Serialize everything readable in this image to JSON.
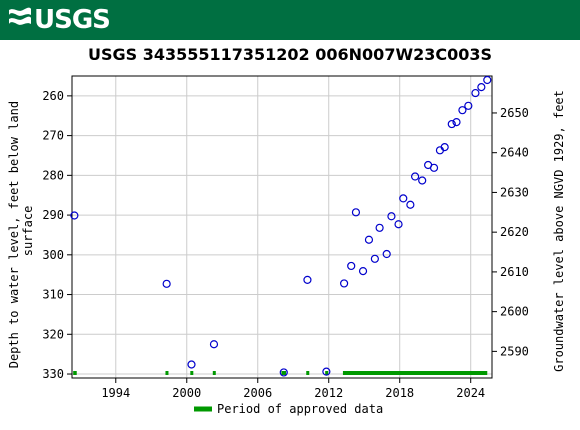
{
  "header": {
    "logo_text": "USGS",
    "background_color": "#006f41"
  },
  "chart_data": {
    "type": "scatter",
    "title": "USGS 343555117351202 006N007W23C003S",
    "xlabel": "",
    "ylabel_left": "Depth to water level, feet below land surface",
    "ylabel_left_lines": [
      "Depth to water level, feet below land",
      "surface"
    ],
    "ylabel_right": "Groundwater level above NGVD 1929, feet",
    "xlim": [
      1990.3,
      2025.8
    ],
    "ylim_left": [
      255,
      331
    ],
    "ylim_right": [
      2659.3,
      2583.3
    ],
    "x_ticks": [
      1994,
      2000,
      2006,
      2012,
      2018,
      2024
    ],
    "y_ticks_left": [
      260,
      270,
      280,
      290,
      300,
      310,
      320,
      330
    ],
    "y_ticks_right": [
      2650,
      2640,
      2630,
      2620,
      2610,
      2600,
      2590
    ],
    "grid": true,
    "marker_color": "#0000cc",
    "approved_color": "#009900",
    "series": [
      {
        "x": [
          1990.5,
          1998.3,
          2000.4,
          2002.3,
          2008.2,
          2010.2,
          2011.8,
          2013.3,
          2013.9,
          2014.3,
          2014.9,
          2015.4,
          2015.9,
          2016.3,
          2016.9,
          2017.3,
          2017.9,
          2018.3,
          2018.9,
          2019.3,
          2019.9,
          2020.4,
          2020.9,
          2021.4,
          2021.8,
          2022.4,
          2022.8,
          2023.3,
          2023.8,
          2024.4,
          2024.9,
          2025.4
        ],
        "y": [
          290.1,
          307.3,
          327.6,
          322.5,
          329.6,
          306.3,
          329.4,
          307.2,
          302.8,
          289.3,
          304.1,
          296.2,
          301.0,
          293.2,
          299.8,
          290.3,
          292.3,
          285.8,
          287.4,
          280.3,
          281.3,
          277.4,
          278.1,
          273.7,
          272.9,
          267.1,
          266.6,
          263.6,
          262.5,
          259.3,
          257.8,
          256.0
        ]
      }
    ],
    "approved_periods": [
      [
        1990.4,
        1990.7
      ],
      [
        1998.2,
        1998.4
      ],
      [
        2000.3,
        2000.5
      ],
      [
        2002.2,
        2002.4
      ],
      [
        2008.0,
        2008.4
      ],
      [
        2010.1,
        2010.3
      ],
      [
        2011.7,
        2011.9
      ],
      [
        2013.2,
        2025.4
      ]
    ],
    "legend": {
      "label": "Period of approved data",
      "placement": "bottom-center"
    }
  }
}
